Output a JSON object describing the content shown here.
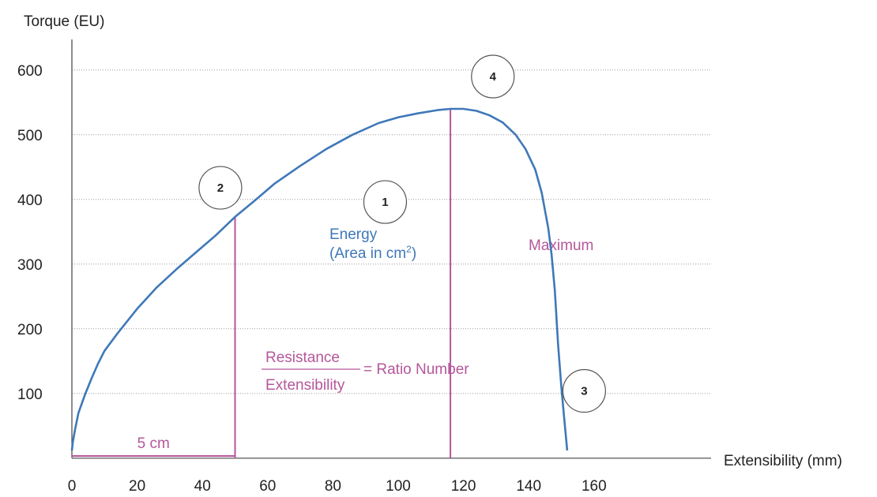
{
  "chart_data": {
    "type": "line",
    "ylabel": "Torque (EU)",
    "xlabel": "Extensibility (mm)",
    "xlim": [
      0,
      167
    ],
    "ylim": [
      12,
      640
    ],
    "xticks": [
      0,
      20,
      40,
      60,
      80,
      100,
      120,
      140,
      160
    ],
    "yticks": [
      100,
      200,
      300,
      400,
      500,
      600
    ],
    "grid": "horizontal dotted",
    "series": [
      {
        "color": "#3f78b8",
        "x": [
          0,
          0.3,
          1,
          2,
          4,
          6,
          8,
          10,
          14,
          20,
          26,
          32,
          38,
          44,
          50,
          56,
          62,
          70,
          78,
          86,
          94,
          100,
          106,
          112,
          116,
          120,
          124,
          128,
          132,
          136,
          139,
          142,
          144,
          146,
          147,
          148,
          149,
          150,
          151,
          151.8
        ],
        "values": [
          12,
          25,
          45,
          70,
          98,
          123,
          146,
          166,
          193,
          231,
          264,
          292,
          318,
          344,
          373,
          398,
          424,
          452,
          478,
          500,
          518,
          527,
          533,
          538,
          540,
          540,
          537,
          530,
          519,
          500,
          478,
          446,
          410,
          355,
          315,
          260,
          175,
          110,
          55,
          12
        ]
      }
    ],
    "annotations": {
      "energy_label": [
        "Energy",
        "(Area in cm",
        "2",
        ")"
      ],
      "maximum_label": "Maximum",
      "maximum_x": 116,
      "maximum_y": 540,
      "resistance_x": 50,
      "resistance_y": 373,
      "ratio_numerator": "Resistance",
      "ratio_denominator": "Extensibility",
      "ratio_result": "= Ratio Number",
      "span_label": "5 cm",
      "span_from": 0,
      "span_to": 50,
      "markers": [
        {
          "label": "1",
          "x": 96,
          "y": 396
        },
        {
          "label": "2",
          "x": 45.5,
          "y": 418
        },
        {
          "label": "3",
          "x": 157,
          "y": 104
        },
        {
          "label": "4",
          "x": 129,
          "y": 590
        }
      ]
    },
    "colors": {
      "curve": "#3f78b8",
      "magenta": "#b5579b",
      "axis": "#444444",
      "grid": "#9a9a9a"
    }
  }
}
